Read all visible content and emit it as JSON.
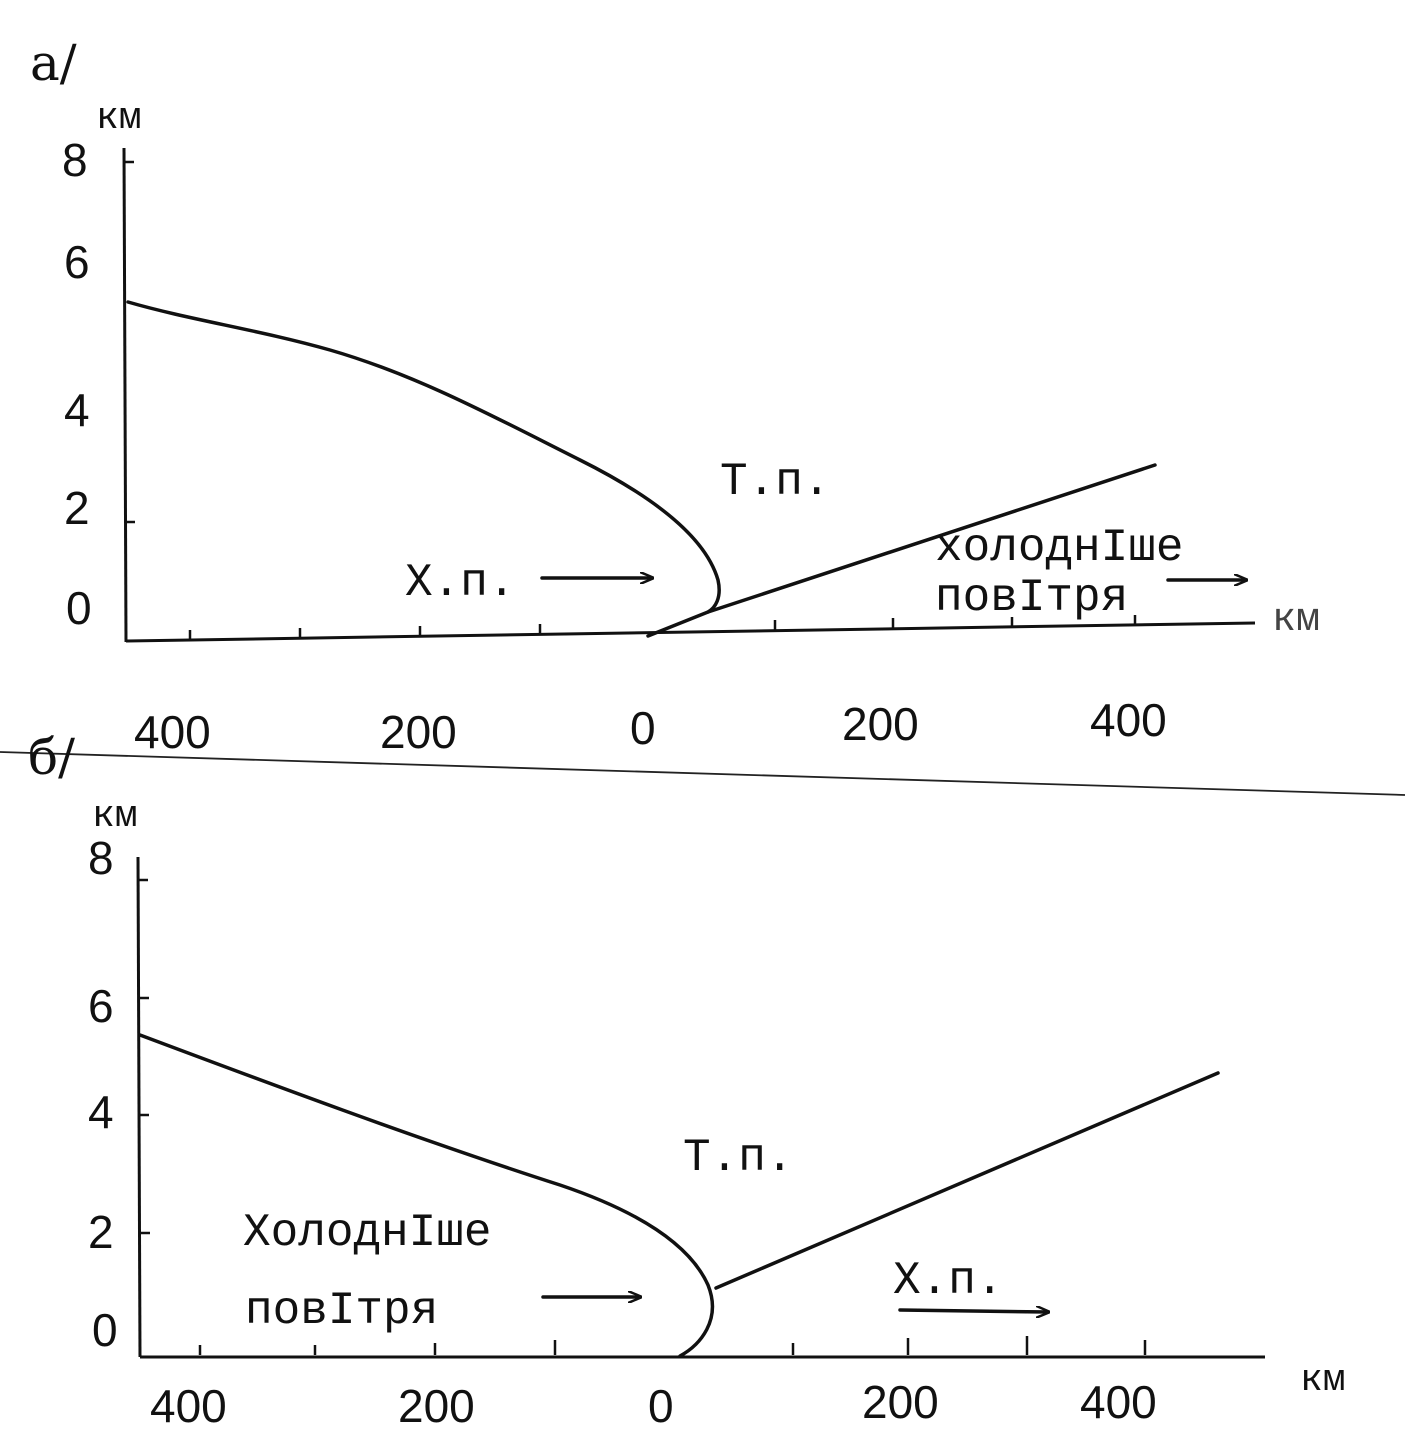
{
  "panel_a": {
    "label": "а/",
    "y_unit": "км",
    "x_unit": "км",
    "y_ticks": [
      "8",
      "6",
      "4",
      "2",
      "0"
    ],
    "x_ticks": [
      "400",
      "200",
      "0",
      "200",
      "400"
    ],
    "warm_label": "Т.п.",
    "cold_label": "Х.п.",
    "colder_air_line1": "холоднIше",
    "colder_air_line2": "повIтря"
  },
  "panel_b": {
    "label": "б/",
    "y_unit": "км",
    "x_unit": "км",
    "y_ticks": [
      "8",
      "6",
      "4",
      "2",
      "0"
    ],
    "x_ticks": [
      "400",
      "200",
      "0",
      "200",
      "400"
    ],
    "warm_label": "Т.п.",
    "colder_air_line1": "ХолоднIше",
    "colder_air_line2": "повIтря",
    "cold_label": "Х.п."
  }
}
